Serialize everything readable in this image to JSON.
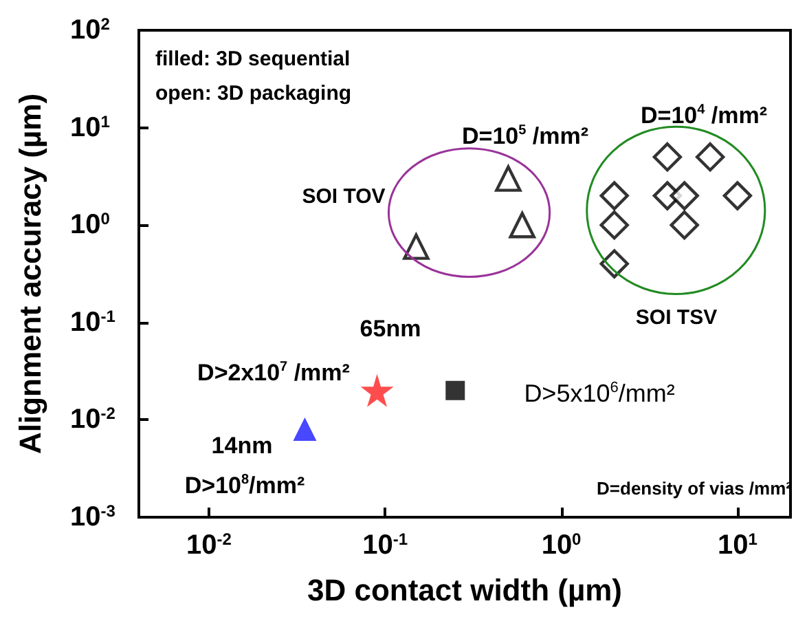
{
  "chart_data": {
    "type": "scatter",
    "xlabel": "3D contact width (µm)",
    "ylabel": "Alignment accuracy (µm)",
    "log": "xy",
    "xlim": [
      0.004,
      20
    ],
    "ylim": [
      0.001,
      100
    ],
    "xticks": [
      {
        "value": 0.01,
        "label": "10$^{-2}$"
      },
      {
        "value": 0.1,
        "label": "10$^{-1}$"
      },
      {
        "value": 1,
        "label": "10$^{0}$"
      },
      {
        "value": 10,
        "label": "10$^{1}$"
      }
    ],
    "yticks": [
      {
        "value": 0.001,
        "label": "10$^{-3}$"
      },
      {
        "value": 0.01,
        "label": "10$^{-2}$"
      },
      {
        "value": 0.1,
        "label": "10$^{-1}$"
      },
      {
        "value": 1,
        "label": "10$^{0}$"
      },
      {
        "value": 10,
        "label": "10$^{1}$"
      },
      {
        "value": 100,
        "label": "10$^{2}$"
      }
    ],
    "series": [
      {
        "color": "#000000",
        "marker": "triangle",
        "x": [
          0.15,
          0.5,
          0.6
        ],
        "values": [
          0.6,
          3,
          1
        ]
      },
      {
        "color": "#000000",
        "marker": "diamond",
        "x": [
          2,
          2,
          2,
          4,
          4,
          5,
          5,
          7,
          10
        ],
        "values": [
          2,
          1,
          0.4,
          5,
          2,
          2,
          1,
          5,
          2
        ]
      },
      {
        "color": "#ff2020",
        "marker": "star",
        "x": [
          0.09
        ],
        "values": [
          0.02
        ]
      },
      {
        "color": "#000000",
        "marker": "square",
        "x": [
          0.25
        ],
        "values": [
          0.02
        ]
      },
      {
        "color": "#1a1aff",
        "marker": "triangle",
        "x": [
          0.035
        ],
        "values": [
          0.008
        ]
      }
    ],
    "annotations": [
      "filled: 3D sequential",
      "open: 3D packaging",
      "D=10$^{5}$ /mm²",
      "D=10$^{4}$ /mm²",
      "SOI TOV",
      "SOI TSV",
      "65nm",
      "D>2x10$^{7}$ /mm²",
      "D>5x10$^{6}$/mm²",
      "14nm",
      "D>10$^{8}$/mm²",
      "D=density of vias /mm²"
    ]
  }
}
